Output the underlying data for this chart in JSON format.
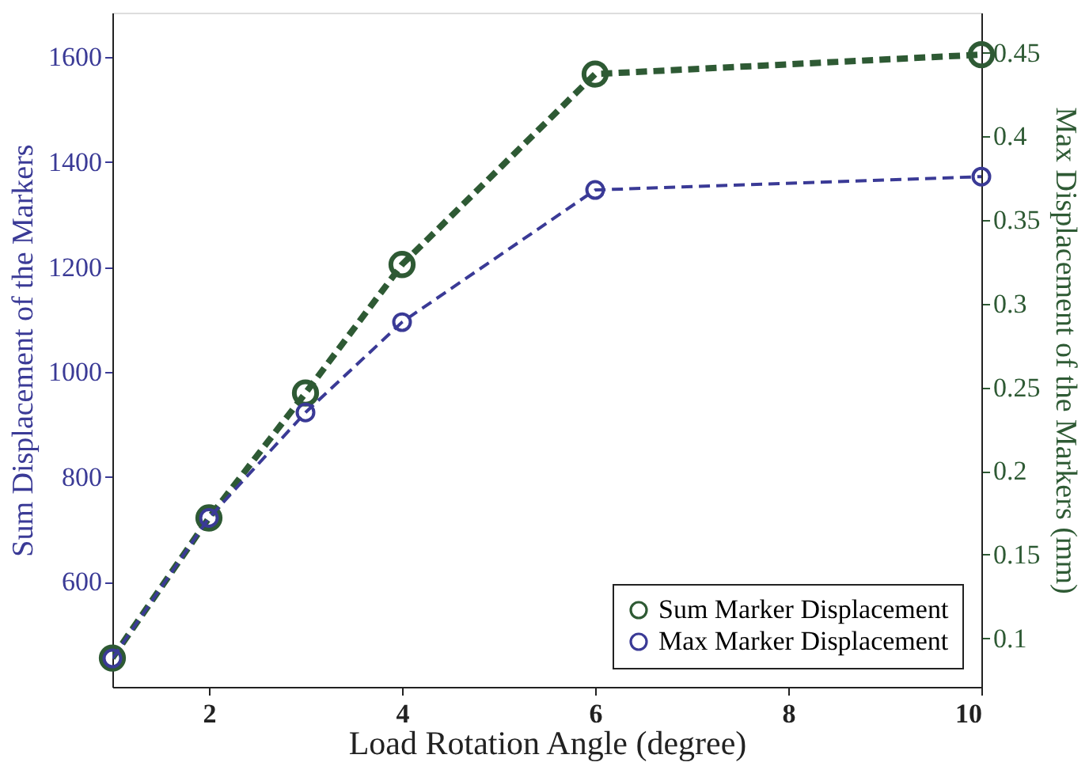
{
  "chart_data": {
    "type": "line",
    "xlabel": "Load Rotation Angle (degree)",
    "ylabel": "Sum Displacement of the Markers",
    "y2label": "Max Displacement of the Markers (mm)",
    "x": [
      1,
      2,
      3,
      4,
      6,
      10
    ],
    "series": [
      {
        "name": "Sum Marker Displacement",
        "color": "#2e5a34",
        "values": [
          455,
          722,
          960,
          1205,
          1568,
          1605
        ]
      },
      {
        "name": "Max Marker Displacement",
        "color": "#3a3a96",
        "values": [
          0.088,
          0.172,
          0.235,
          0.289,
          0.368,
          0.376
        ],
        "axis": "y2"
      }
    ],
    "xlim": [
      1,
      10
    ],
    "xticks": [
      2,
      4,
      6,
      8,
      10
    ],
    "ylim": [
      400,
      1685
    ],
    "yticks": [
      600,
      800,
      1000,
      1200,
      1400,
      1600
    ],
    "y2lim": [
      0.071,
      0.474
    ],
    "y2ticks": [
      0.1,
      0.15,
      0.2,
      0.25,
      0.3,
      0.35,
      0.4,
      0.45
    ],
    "grid": false,
    "legend": "bottom right",
    "marker": "circle",
    "line_style": "dashed"
  }
}
